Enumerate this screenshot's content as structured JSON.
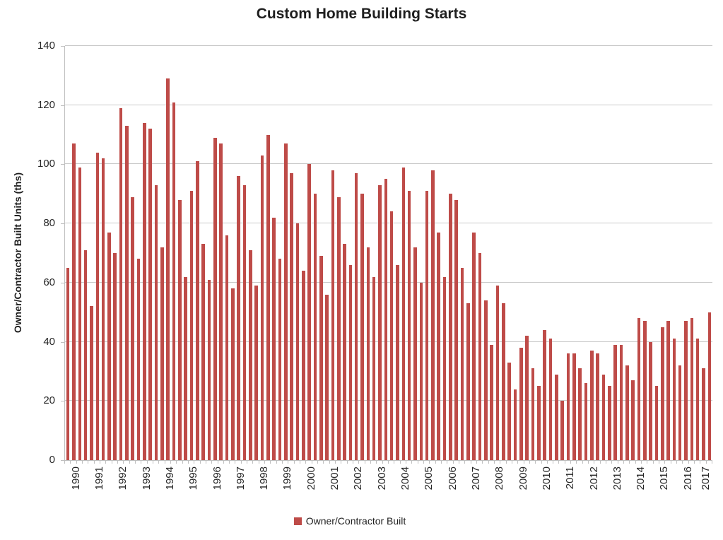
{
  "title": "Custom Home Building Starts",
  "y_axis_title": "Owner/Contractor Built Units (ths)",
  "legend": {
    "label": "Owner/Contractor Built",
    "marker_color": "#be4b48"
  },
  "colors": {
    "bar": "#be4b48",
    "gridline": "#c9c9c9",
    "axis": "#bfbfbf",
    "text": "#262626"
  },
  "chart_data": {
    "type": "bar",
    "title": "Custom Home Building Starts",
    "xlabel": "",
    "ylabel": "Owner/Contractor Built Units (ths)",
    "ylim": [
      0,
      140
    ],
    "yticks": [
      0,
      20,
      40,
      60,
      80,
      100,
      120,
      140
    ],
    "grid": true,
    "legend_position": "bottom",
    "x_frequency": "quarterly",
    "series_name": "Owner/Contractor Built",
    "years": [
      "1990",
      "1991",
      "1992",
      "1993",
      "1994",
      "1995",
      "1996",
      "1997",
      "1998",
      "1999",
      "2000",
      "2001",
      "2002",
      "2003",
      "2004",
      "2005",
      "2006",
      "2007",
      "2008",
      "2009",
      "2010",
      "2011",
      "2012",
      "2013",
      "2014",
      "2015",
      "2016",
      "2017"
    ],
    "values_by_year": [
      [
        65,
        107,
        99,
        71
      ],
      [
        52,
        104,
        102,
        77
      ],
      [
        70,
        119,
        113,
        89
      ],
      [
        68,
        114,
        112,
        93
      ],
      [
        72,
        129,
        121,
        88
      ],
      [
        62,
        91,
        101,
        73
      ],
      [
        61,
        109,
        107,
        76
      ],
      [
        58,
        96,
        93,
        71
      ],
      [
        59,
        103,
        110,
        82
      ],
      [
        68,
        107,
        97,
        80
      ],
      [
        64,
        100,
        90,
        69
      ],
      [
        56,
        98,
        89,
        73
      ],
      [
        66,
        97,
        90,
        72
      ],
      [
        62,
        93,
        95,
        84
      ],
      [
        66,
        99,
        91,
        72
      ],
      [
        60,
        91,
        98,
        77
      ],
      [
        62,
        90,
        88,
        65
      ],
      [
        53,
        77,
        70,
        54
      ],
      [
        39,
        59,
        53,
        33
      ],
      [
        24,
        38,
        42,
        31
      ],
      [
        25,
        44,
        41,
        29
      ],
      [
        20,
        36,
        36,
        31
      ],
      [
        26,
        37,
        36,
        29
      ],
      [
        25,
        39,
        39,
        32
      ],
      [
        27,
        48,
        47,
        40
      ],
      [
        25,
        45,
        47,
        41
      ],
      [
        32,
        47,
        48,
        41
      ],
      [
        31,
        50
      ]
    ]
  }
}
